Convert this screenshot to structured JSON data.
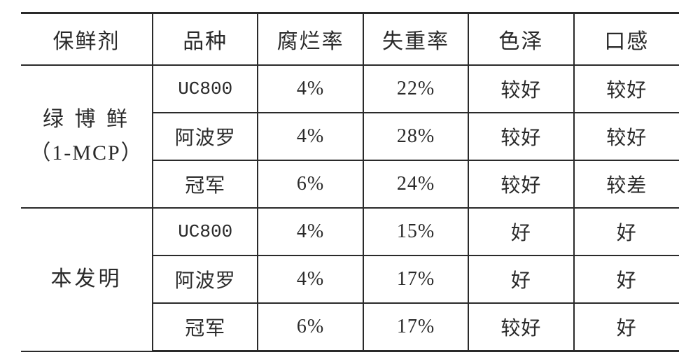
{
  "type": "table",
  "border_color": "#2a2a2a",
  "text_color": "#2a2a2a",
  "background_color": "#ffffff",
  "header_fontsize": 30,
  "cell_fontsize": 28,
  "font_family": "SimSun / Songti serif",
  "columns": [
    "保鲜剂",
    "品种",
    "腐烂率",
    "失重率",
    "色泽",
    "口感"
  ],
  "column_widths_pct": [
    20,
    16,
    16,
    16,
    16,
    16
  ],
  "groups": [
    {
      "label_main": "绿 博 鲜",
      "label_sub": "（1-MCP）",
      "rows": [
        {
          "variety": "UC800",
          "variety_is_ascii": true,
          "rot": "4%",
          "wtloss": "22%",
          "color": "较好",
          "taste": "较好"
        },
        {
          "variety": "阿波罗",
          "variety_is_ascii": false,
          "rot": "4%",
          "wtloss": "28%",
          "color": "较好",
          "taste": "较好"
        },
        {
          "variety": "冠军",
          "variety_is_ascii": false,
          "rot": "6%",
          "wtloss": "24%",
          "color": "较好",
          "taste": "较差"
        }
      ]
    },
    {
      "label_main": "本发明",
      "label_sub": "",
      "rows": [
        {
          "variety": "UC800",
          "variety_is_ascii": true,
          "rot": "4%",
          "wtloss": "15%",
          "color": "好",
          "taste": "好"
        },
        {
          "variety": "阿波罗",
          "variety_is_ascii": false,
          "rot": "4%",
          "wtloss": "17%",
          "color": "好",
          "taste": "好"
        },
        {
          "variety": "冠军",
          "variety_is_ascii": false,
          "rot": "6%",
          "wtloss": "17%",
          "color": "较好",
          "taste": "好"
        }
      ]
    }
  ]
}
